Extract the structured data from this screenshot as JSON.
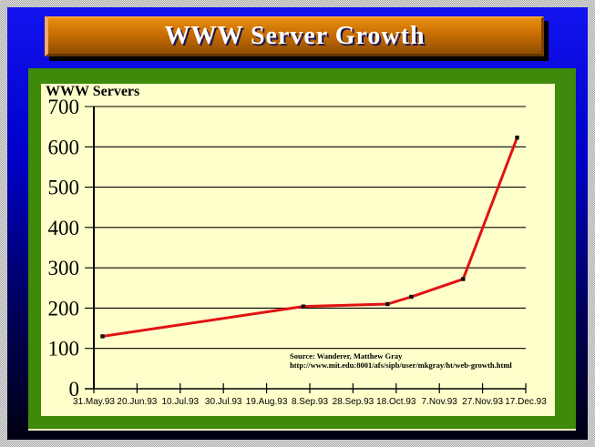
{
  "slide": {
    "title": "WWW Server Growth"
  },
  "chart": {
    "label": "WWW Servers",
    "source": {
      "line1": "Source: Wanderer, Matthew Gray",
      "line2": "http://www.mit.edu:8001/afs/sipb/user/mkgray/ht/web-growth.html"
    }
  },
  "chart_data": {
    "type": "line",
    "title": "WWW Servers",
    "xlabel": "",
    "ylabel": "",
    "ylim": [
      0,
      700
    ],
    "y_ticks": [
      0,
      100,
      200,
      300,
      400,
      500,
      600,
      700
    ],
    "x_axis": {
      "unit": "days since 31.May.93",
      "range": [
        0,
        200
      ],
      "tick_interval": 20,
      "tick_labels": [
        "31.May.93",
        "20.Jun.93",
        "10.Jul.93",
        "30.Jul.93",
        "19.Aug.93",
        "8.Sep.93",
        "28.Sep.93",
        "18.Oct.93",
        "7.Nov.93",
        "27.Nov.93",
        "17.Dec.93"
      ]
    },
    "grid": "horizontal",
    "legend": "none",
    "series": [
      {
        "name": "WWW Servers",
        "color": "#e11212",
        "marker": "black-square",
        "points": [
          {
            "day": 4,
            "value": 130
          },
          {
            "day": 97,
            "value": 204
          },
          {
            "day": 136,
            "value": 210
          },
          {
            "day": 147,
            "value": 228
          },
          {
            "day": 171,
            "value": 272
          },
          {
            "day": 196,
            "value": 623
          }
        ]
      }
    ],
    "annotations": [
      "Source: Wanderer, Matthew Gray",
      "http://www.mit.edu:8001/afs/sipb/user/mkgray/ht/web-growth.html"
    ]
  },
  "colors": {
    "background_top": "#1313ef",
    "background_bottom": "#000012",
    "banner_orange_top": "#e88d10",
    "banner_orange_bottom": "#8f4e00",
    "title_text": "#ffffff",
    "title_shadow": "#16165e",
    "panel_green": "#3e8a0a",
    "chart_bg": "#ffffcc",
    "line_red": "#e11212",
    "axis_black": "#000000",
    "frame_check_dark": "#a2a2a2",
    "frame_check_light": "#e8e8e8"
  }
}
